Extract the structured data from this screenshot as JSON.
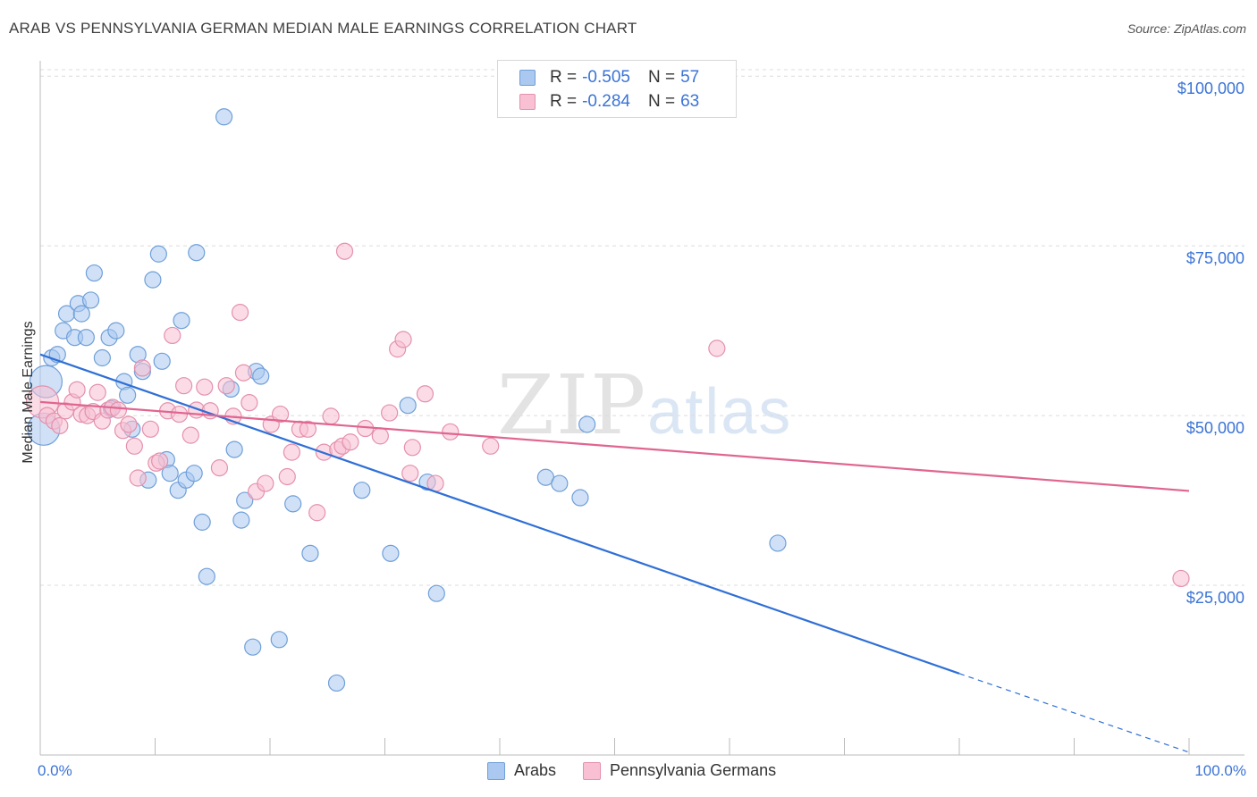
{
  "title": "ARAB VS PENNSYLVANIA GERMAN MEDIAN MALE EARNINGS CORRELATION CHART",
  "source": "Source: ZipAtlas.com",
  "watermark": {
    "zip": "ZIP",
    "atlas": "atlas"
  },
  "legend_top": {
    "rows": [
      {
        "r_label": "R =",
        "r_value": "-0.505",
        "n_label": "N =",
        "n_value": "57",
        "color": "#aac8f0",
        "border": "#6f9fd8"
      },
      {
        "r_label": "R =",
        "r_value": "-0.284",
        "n_label": "N =",
        "n_value": "63",
        "color": "#f8c0d2",
        "border": "#e490ad"
      }
    ]
  },
  "legend_bottom": [
    {
      "label": "Arabs",
      "color": "#aac8f0",
      "border": "#6f9fd8"
    },
    {
      "label": "Pennsylvania Germans",
      "color": "#f8c0d2",
      "border": "#e490ad"
    }
  ],
  "chart_data": {
    "type": "scatter",
    "title": "ARAB VS PENNSYLVANIA GERMAN MEDIAN MALE EARNINGS CORRELATION CHART",
    "xlabel": "",
    "ylabel": "Median Male Earnings",
    "x_tick_labels": [
      "0.0%",
      "100.0%"
    ],
    "y_tick_labels": [
      "$25,000",
      "$50,000",
      "$75,000",
      "$100,000"
    ],
    "y_ticks": [
      25000,
      50000,
      75000,
      100000
    ],
    "xlim": [
      0,
      100
    ],
    "ylim": [
      0,
      102000
    ],
    "grid": true,
    "legend_placement": "top-center",
    "series": [
      {
        "name": "Arabs",
        "color": "#6f9fd8",
        "fill": "#aac8f0",
        "trend": {
          "x0": 0,
          "y0": 59000,
          "x1": 80,
          "y1": 12000,
          "dashed_to_x": 100,
          "dashed_to_y": 400
        },
        "points": [
          [
            0.3,
            48000,
            2
          ],
          [
            0.5,
            55000,
            2
          ],
          [
            1,
            58500,
            1
          ],
          [
            1.5,
            59000,
            1
          ],
          [
            2,
            62500,
            1
          ],
          [
            2.3,
            65000,
            1
          ],
          [
            3,
            61500,
            1
          ],
          [
            3.3,
            66500,
            1
          ],
          [
            3.6,
            65000,
            1
          ],
          [
            4,
            61500,
            1
          ],
          [
            4.4,
            67000,
            1
          ],
          [
            4.7,
            71000,
            1
          ],
          [
            5.4,
            58500,
            1
          ],
          [
            6,
            61500,
            1
          ],
          [
            6.2,
            51000,
            1
          ],
          [
            6.6,
            62500,
            1
          ],
          [
            7.3,
            55000,
            1
          ],
          [
            7.6,
            53000,
            1
          ],
          [
            8,
            48000,
            1
          ],
          [
            8.5,
            59000,
            1
          ],
          [
            8.9,
            56500,
            1
          ],
          [
            9.4,
            40500,
            1
          ],
          [
            9.8,
            70000,
            1
          ],
          [
            10.3,
            73800,
            1
          ],
          [
            10.6,
            58000,
            1
          ],
          [
            11,
            43500,
            1
          ],
          [
            11.3,
            41500,
            1
          ],
          [
            12,
            39000,
            1
          ],
          [
            12.3,
            64000,
            1
          ],
          [
            12.7,
            40500,
            1
          ],
          [
            13.4,
            41500,
            1
          ],
          [
            13.6,
            74000,
            1
          ],
          [
            14.1,
            34300,
            1
          ],
          [
            14.5,
            26300,
            1
          ],
          [
            16,
            94000,
            1
          ],
          [
            16.6,
            53900,
            1
          ],
          [
            16.9,
            45000,
            1
          ],
          [
            17.5,
            34600,
            1
          ],
          [
            17.8,
            37500,
            1
          ],
          [
            18.5,
            15900,
            1
          ],
          [
            18.8,
            56500,
            1
          ],
          [
            19.2,
            55800,
            1
          ],
          [
            20.8,
            17000,
            1
          ],
          [
            22,
            37000,
            1
          ],
          [
            23.5,
            29700,
            1
          ],
          [
            25.8,
            10600,
            1
          ],
          [
            28,
            39000,
            1
          ],
          [
            30.5,
            29700,
            1
          ],
          [
            32,
            51500,
            1
          ],
          [
            33.7,
            40200,
            1
          ],
          [
            34.5,
            23800,
            1
          ],
          [
            44,
            40900,
            1
          ],
          [
            45.2,
            40000,
            1
          ],
          [
            47,
            37900,
            1
          ],
          [
            47.6,
            48700,
            1
          ],
          [
            64.2,
            31200,
            1
          ]
        ]
      },
      {
        "name": "Pennsylvania Germans",
        "color": "#e490ad",
        "fill": "#f8c0d2",
        "trend": {
          "x0": 0,
          "y0": 52000,
          "x1": 100,
          "y1": 38900
        },
        "points": [
          [
            0.2,
            52000,
            2
          ],
          [
            0.6,
            50000,
            1
          ],
          [
            1.2,
            49200,
            1
          ],
          [
            1.7,
            48500,
            1
          ],
          [
            2.2,
            50700,
            1
          ],
          [
            2.8,
            52000,
            1
          ],
          [
            3.2,
            53800,
            1
          ],
          [
            3.6,
            50200,
            1
          ],
          [
            4.1,
            50000,
            1
          ],
          [
            4.6,
            50600,
            1
          ],
          [
            5,
            53400,
            1
          ],
          [
            5.4,
            49200,
            1
          ],
          [
            5.9,
            50800,
            1
          ],
          [
            6.3,
            51200,
            1
          ],
          [
            6.8,
            50800,
            1
          ],
          [
            7.2,
            47800,
            1
          ],
          [
            7.7,
            48700,
            1
          ],
          [
            8.2,
            45500,
            1
          ],
          [
            8.5,
            40800,
            1
          ],
          [
            8.9,
            57000,
            1
          ],
          [
            9.6,
            48000,
            1
          ],
          [
            10.1,
            43000,
            1
          ],
          [
            10.4,
            43300,
            1
          ],
          [
            11.1,
            50700,
            1
          ],
          [
            11.5,
            61800,
            1
          ],
          [
            12.1,
            50200,
            1
          ],
          [
            12.5,
            54400,
            1
          ],
          [
            13.1,
            47100,
            1
          ],
          [
            13.6,
            50800,
            1
          ],
          [
            14.3,
            54200,
            1
          ],
          [
            14.8,
            50700,
            1
          ],
          [
            15.6,
            42300,
            1
          ],
          [
            16.2,
            54400,
            1
          ],
          [
            16.8,
            49900,
            1
          ],
          [
            17.4,
            65200,
            1
          ],
          [
            17.7,
            56300,
            1
          ],
          [
            18.2,
            51900,
            1
          ],
          [
            18.8,
            38800,
            1
          ],
          [
            19.6,
            40000,
            1
          ],
          [
            20.1,
            48700,
            1
          ],
          [
            20.9,
            50200,
            1
          ],
          [
            21.5,
            41000,
            1
          ],
          [
            21.9,
            44600,
            1
          ],
          [
            22.6,
            48000,
            1
          ],
          [
            23.3,
            48000,
            1
          ],
          [
            24.1,
            35700,
            1
          ],
          [
            24.7,
            44600,
            1
          ],
          [
            25.3,
            49900,
            1
          ],
          [
            25.9,
            45000,
            1
          ],
          [
            26.3,
            45500,
            1
          ],
          [
            26.5,
            74200,
            1
          ],
          [
            27,
            46100,
            1
          ],
          [
            28.3,
            48100,
            1
          ],
          [
            29.6,
            47000,
            1
          ],
          [
            30.4,
            50400,
            1
          ],
          [
            31.1,
            59800,
            1
          ],
          [
            31.6,
            61200,
            1
          ],
          [
            32.2,
            41500,
            1
          ],
          [
            32.4,
            45300,
            1
          ],
          [
            33.5,
            53200,
            1
          ],
          [
            34.4,
            40000,
            1
          ],
          [
            35.7,
            47600,
            1
          ],
          [
            39.2,
            45500,
            1
          ],
          [
            58.9,
            59900,
            1
          ],
          [
            99.3,
            26000,
            1
          ]
        ]
      }
    ]
  }
}
